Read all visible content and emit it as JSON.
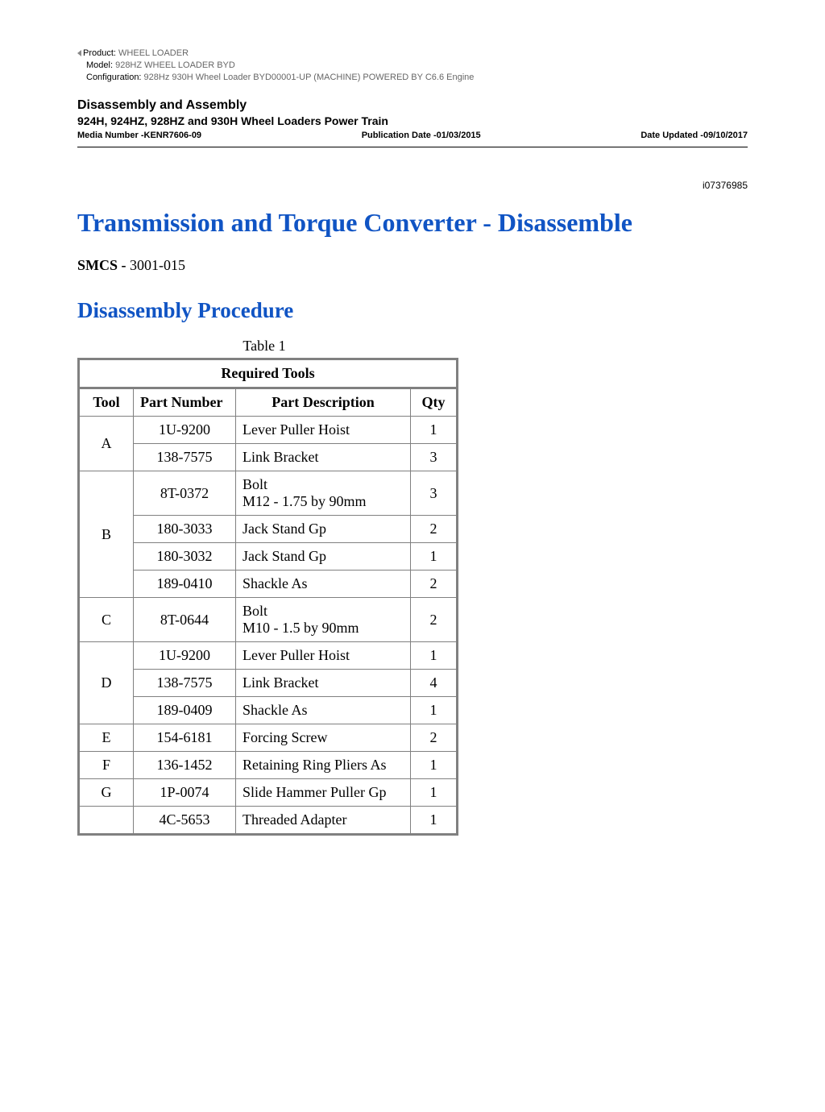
{
  "meta": {
    "product_label": "Product:  ",
    "product_value": "WHEEL LOADER",
    "model_label": "Model:  ",
    "model_value": "928HZ WHEEL LOADER BYD",
    "config_label": "Configuration: ",
    "config_value": "928Hz 930H Wheel Loader BYD00001-UP (MACHINE) POWERED BY C6.6 Engine"
  },
  "header": {
    "section_title": "Disassembly and Assembly",
    "section_subtitle": "924H, 924HZ, 928HZ and 930H Wheel Loaders Power Train",
    "media_number": "Media Number -KENR7606-09",
    "pub_date": "Publication Date -01/03/2015",
    "date_updated": "Date Updated -09/10/2017"
  },
  "doc_id": "i07376985",
  "title": "Transmission and Torque Converter - Disassemble",
  "smcs_label": "SMCS - ",
  "smcs_code": "3001-015",
  "subtitle": "Disassembly Procedure",
  "table": {
    "caption": "Table 1",
    "title": "Required Tools",
    "columns": [
      "Tool",
      "Part Number",
      "Part Description",
      "Qty"
    ],
    "rows": [
      {
        "tool": "A",
        "rowspan": 2,
        "partnum": "1U-9200",
        "desc": "Lever Puller Hoist",
        "qty": "1"
      },
      {
        "tool": null,
        "partnum": "138-7575",
        "desc": "Link Bracket",
        "qty": "3"
      },
      {
        "tool": "B",
        "rowspan": 4,
        "partnum": "8T-0372",
        "desc": "Bolt\nM12 - 1.75 by 90mm",
        "qty": "3"
      },
      {
        "tool": null,
        "partnum": "180-3033",
        "desc": "Jack Stand Gp",
        "qty": "2"
      },
      {
        "tool": null,
        "partnum": "180-3032",
        "desc": "Jack Stand Gp",
        "qty": "1"
      },
      {
        "tool": null,
        "partnum": "189-0410",
        "desc": "Shackle As",
        "qty": "2"
      },
      {
        "tool": "C",
        "rowspan": 1,
        "partnum": "8T-0644",
        "desc": "Bolt\nM10 - 1.5 by 90mm",
        "qty": "2"
      },
      {
        "tool": "D",
        "rowspan": 3,
        "partnum": "1U-9200",
        "desc": "Lever Puller Hoist",
        "qty": "1"
      },
      {
        "tool": null,
        "partnum": "138-7575",
        "desc": "Link Bracket",
        "qty": "4"
      },
      {
        "tool": null,
        "partnum": "189-0409",
        "desc": "Shackle As",
        "qty": "1"
      },
      {
        "tool": "E",
        "rowspan": 1,
        "partnum": "154-6181",
        "desc": "Forcing Screw",
        "qty": "2"
      },
      {
        "tool": "F",
        "rowspan": 1,
        "partnum": "136-1452",
        "desc": "Retaining Ring Pliers As",
        "qty": "1"
      },
      {
        "tool": "G",
        "rowspan": 1,
        "partnum": "1P-0074",
        "desc": "Slide Hammer Puller Gp",
        "qty": "1"
      },
      {
        "tool": "",
        "rowspan": 1,
        "partnum": "4C-5653",
        "desc": "Threaded Adapter",
        "qty": "1"
      }
    ]
  }
}
